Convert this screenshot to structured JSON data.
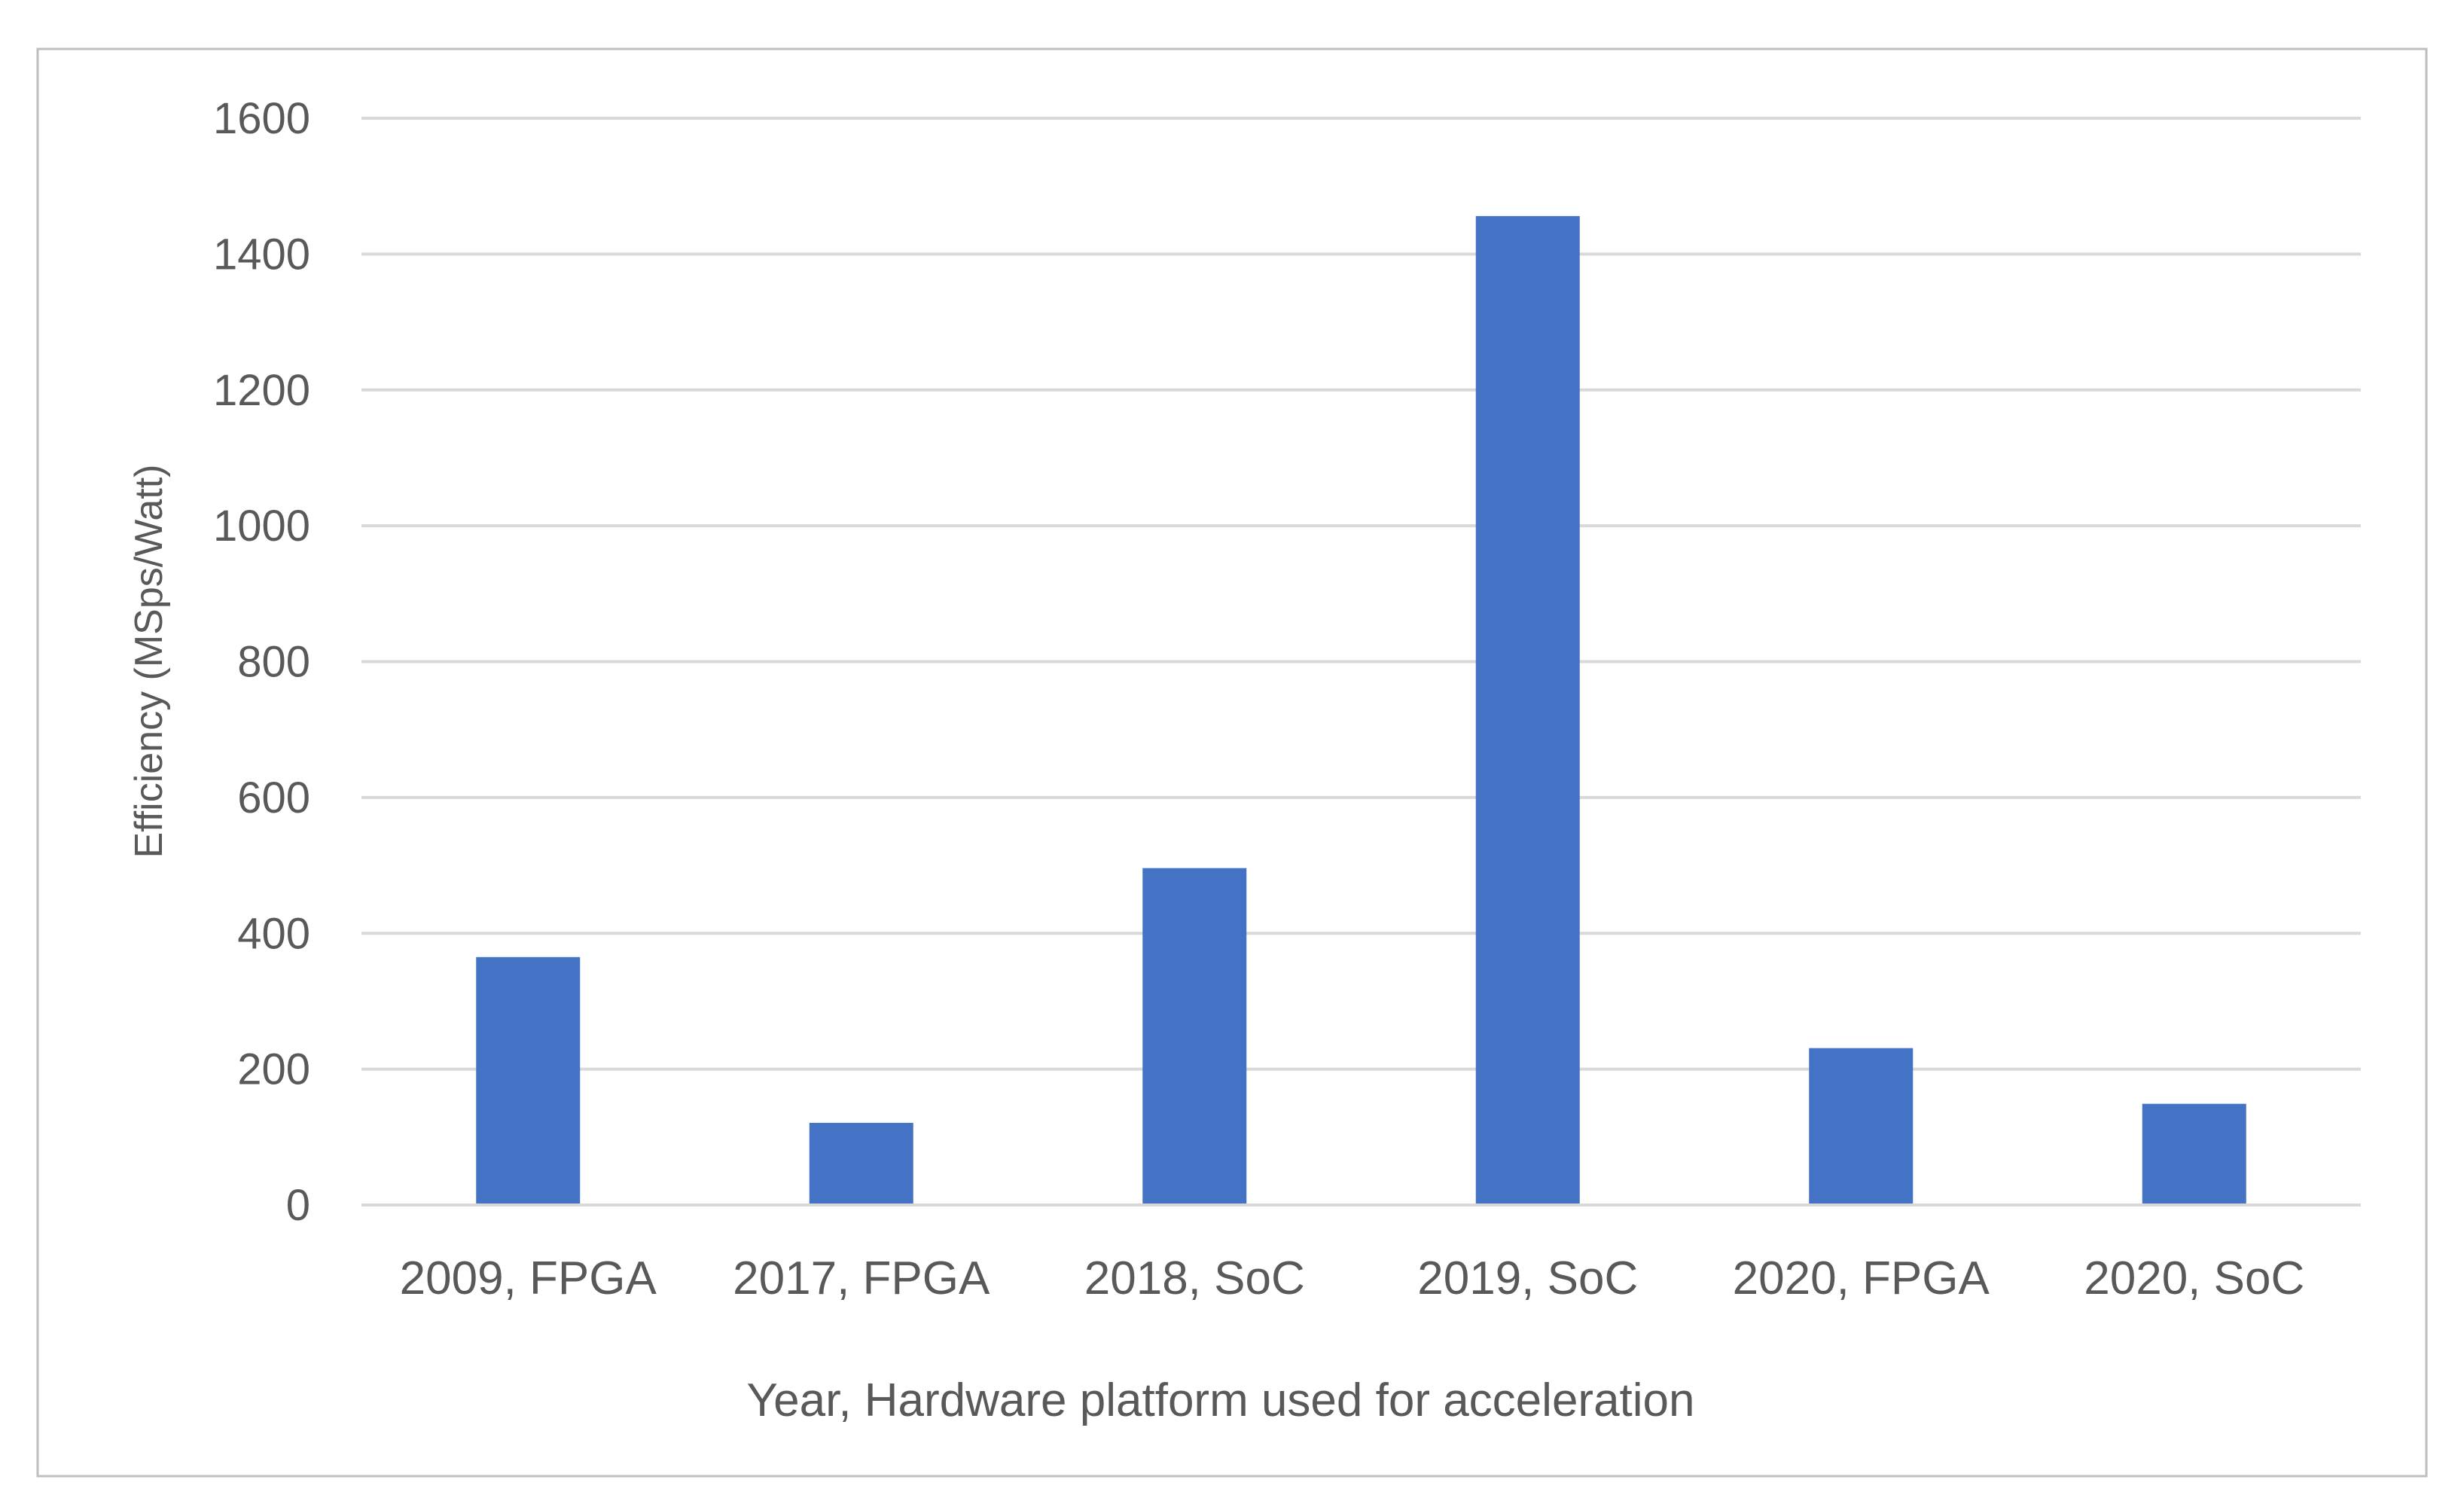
{
  "chart_data": {
    "type": "bar",
    "title": "",
    "xlabel": "Year, Hardware platform used for acceleration",
    "ylabel": "Efficiency (MSps/Watt)",
    "categories": [
      "2009, FPGA",
      "2017, FPGA",
      "2018, SoC",
      "2019, SoC",
      "2020, FPGA",
      "2020, SoC"
    ],
    "values": [
      365,
      121,
      496,
      1456,
      231,
      149
    ],
    "ylim": [
      0,
      1600
    ],
    "yticks": [
      0,
      200,
      400,
      600,
      800,
      1000,
      1200,
      1400,
      1600
    ],
    "grid": true,
    "legend": "none",
    "colors": {
      "bar": "#4472C4",
      "grid": "#D9D9D9",
      "text": "#595959",
      "border": "#BFBFBF"
    }
  }
}
